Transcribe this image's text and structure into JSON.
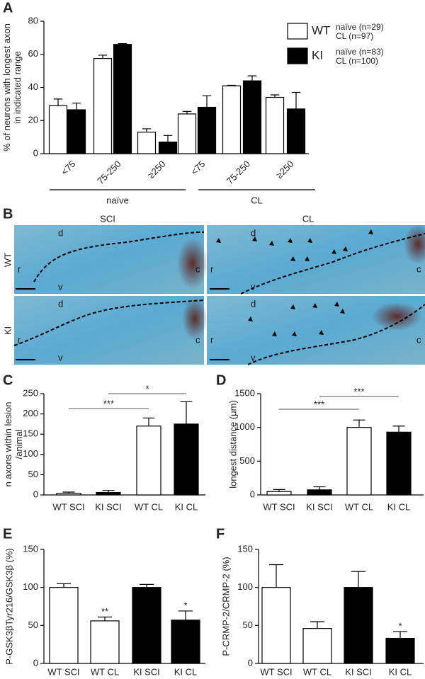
{
  "chart_data": [
    {
      "type": "grouped_bar",
      "panel": "A",
      "ylabel": [
        "% of neurons with longest axon",
        "in indicated range"
      ],
      "categories": [
        "<75",
        "75-250",
        "≥250",
        "<75",
        "75-250",
        "≥250"
      ],
      "groups": [
        "naïve",
        "CL"
      ],
      "series": [
        {
          "name": "WT",
          "color": "#ffffff",
          "legend_lines": [
            "naïve (n=29)",
            "CL (n=97)"
          ],
          "values": [
            29,
            57.5,
            13,
            24,
            41,
            34
          ],
          "errors": [
            4,
            2,
            2,
            1.5,
            0.3,
            1.5
          ]
        },
        {
          "name": "KI",
          "color": "#000000",
          "legend_lines": [
            "naïve (n=83)",
            "CL (n=100)"
          ],
          "values": [
            26.5,
            66,
            7,
            28,
            44,
            27
          ],
          "errors": [
            4,
            0.5,
            4,
            7,
            3,
            10
          ]
        }
      ],
      "ylim": [
        0,
        80
      ],
      "yticks": [
        0,
        20,
        40,
        60,
        80
      ]
    },
    {
      "type": "bar",
      "panel": "C",
      "ylabel": [
        "n axons within lesion",
        "/animal"
      ],
      "categories": [
        "WT SCI",
        "KI SCI",
        "WT CL",
        "KI CL"
      ],
      "values": [
        4,
        6,
        170,
        175
      ],
      "errors": [
        3,
        5,
        20,
        55
      ],
      "colors": [
        "#ffffff",
        "#000000",
        "#ffffff",
        "#000000"
      ],
      "ylim": [
        0,
        250
      ],
      "yticks": [
        0,
        50,
        100,
        150,
        200,
        250
      ],
      "annotations": [
        "***",
        "*"
      ]
    },
    {
      "type": "bar",
      "panel": "D",
      "ylabel": [
        "longest distance (μm)"
      ],
      "categories": [
        "WT SCI",
        "KI SCI",
        "WT CL",
        "KI CL"
      ],
      "values": [
        50,
        75,
        1000,
        930
      ],
      "errors": [
        30,
        45,
        110,
        90
      ],
      "colors": [
        "#ffffff",
        "#000000",
        "#ffffff",
        "#000000"
      ],
      "ylim": [
        0,
        1500
      ],
      "yticks": [
        0,
        500,
        1000,
        1500
      ],
      "annotations": [
        "***",
        "***"
      ]
    },
    {
      "type": "bar",
      "panel": "E",
      "ylabel": [
        "P-GSK3βTyr216/GSK3β (%)"
      ],
      "categories": [
        "WT SCI",
        "WT CL",
        "KI SCI",
        "KI CL"
      ],
      "values": [
        100,
        56,
        100,
        57
      ],
      "errors": [
        5,
        5,
        4,
        12
      ],
      "colors": [
        "#ffffff",
        "#ffffff",
        "#000000",
        "#000000"
      ],
      "ylim": [
        0,
        150
      ],
      "yticks": [
        0,
        50,
        100,
        150
      ],
      "annotations": [
        "**",
        "*"
      ]
    },
    {
      "type": "bar",
      "panel": "F",
      "ylabel": [
        "P-CRMP-2/CRMP-2 (%)"
      ],
      "categories": [
        "WT SCI",
        "WT CL",
        "KI SCI",
        "KI CL"
      ],
      "values": [
        100,
        46,
        100,
        33
      ],
      "errors": [
        30,
        9,
        21,
        9
      ],
      "colors": [
        "#ffffff",
        "#ffffff",
        "#000000",
        "#000000"
      ],
      "ylim": [
        0,
        150
      ],
      "yticks": [
        0,
        50,
        100,
        150
      ],
      "annotations": [
        "*"
      ]
    }
  ],
  "image_panel": {
    "panel": "B",
    "columns": [
      "SCI",
      "CL"
    ],
    "rows": [
      "WT",
      "KI"
    ],
    "orientation_labels": [
      "d",
      "r",
      "v",
      "c"
    ]
  }
}
